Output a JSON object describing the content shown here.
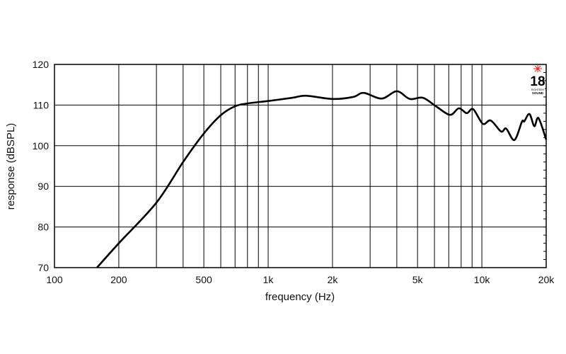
{
  "chart_data": {
    "type": "line",
    "title": "",
    "xlabel": "frequency (Hz)",
    "ylabel": "response (dBSPL)",
    "xscale": "log",
    "xlim": [
      100,
      20000
    ],
    "ylim": [
      70,
      120
    ],
    "grid": true,
    "x_ticks": [
      100,
      200,
      500,
      1000,
      2000,
      5000,
      10000,
      20000
    ],
    "x_tick_labels": [
      "100",
      "200",
      "500",
      "1k",
      "2k",
      "5k",
      "10k",
      "20k"
    ],
    "y_ticks": [
      70,
      80,
      90,
      100,
      110,
      120
    ],
    "y_tick_labels": [
      "70",
      "80",
      "90",
      "100",
      "110",
      "120"
    ],
    "line_color": "#000000",
    "series": [
      {
        "x": [
          158,
          200,
          300,
          400,
          500,
          600,
          700,
          800,
          1000,
          1300,
          1500,
          2000,
          2500,
          2800,
          3400,
          4000,
          4600,
          5300,
          6100,
          7100,
          7800,
          8500,
          9100,
          10100,
          11000,
          12300,
          13000,
          14200,
          15400,
          15800,
          16700,
          17600,
          18400,
          20000
        ],
        "y": [
          70,
          76,
          86,
          96,
          103,
          107.5,
          109.7,
          110.4,
          111,
          111.8,
          112.3,
          111.5,
          112,
          113,
          111.6,
          113.4,
          111.5,
          111.8,
          109.7,
          107.6,
          109.2,
          108,
          109,
          105.4,
          106.2,
          103.5,
          104.2,
          101.4,
          105.9,
          106,
          107.8,
          104.8,
          106.8,
          101.5
        ]
      }
    ]
  },
  "logo": {
    "number": "18",
    "text": "EIGHTEEN SOUND",
    "accent": "#e0201b"
  }
}
